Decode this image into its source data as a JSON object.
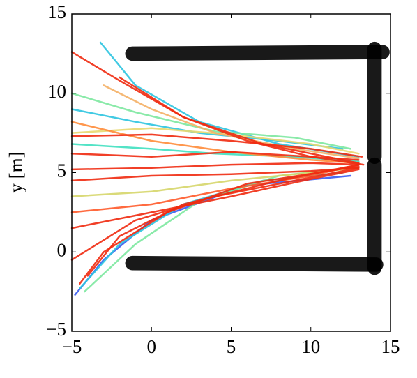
{
  "chart_data": {
    "type": "line",
    "ylabel": "y [m]",
    "xlim": [
      -5,
      15
    ],
    "ylim": [
      -5,
      15
    ],
    "xticks": [
      {
        "value": -5,
        "label": "−5"
      },
      0,
      5,
      10,
      15
    ],
    "yticks": [
      {
        "value": -5,
        "label": "−5"
      },
      0,
      5,
      10,
      15
    ],
    "walls": {
      "color": "#000000",
      "linewidth": 0.9,
      "segments": [
        {
          "x": [
            -1.2,
            14.5
          ],
          "y": [
            12.5,
            12.6
          ]
        },
        {
          "x": [
            -1.2,
            14.1
          ],
          "y": [
            -0.7,
            -0.8
          ]
        },
        {
          "x": [
            14.0,
            14.0
          ],
          "y": [
            12.8,
            6.0
          ]
        },
        {
          "x": [
            14.0,
            14.0
          ],
          "y": [
            5.5,
            -1.0
          ]
        }
      ]
    },
    "series": [
      {
        "color": "#2ec4e0",
        "x": [
          -3.2,
          -1,
          3,
          8,
          13
        ],
        "y": [
          13.2,
          10.5,
          8.2,
          6.8,
          6
        ]
      },
      {
        "color": "#2ec4e0",
        "x": [
          -5,
          -1,
          3,
          8,
          12
        ],
        "y": [
          9,
          8.2,
          7.5,
          7,
          6.5
        ]
      },
      {
        "color": "#7de8a0",
        "x": [
          -5,
          -1,
          4,
          9,
          12.5
        ],
        "y": [
          10,
          8.8,
          7.6,
          7.2,
          6.5
        ]
      },
      {
        "color": "#3a5cf0",
        "x": [
          -4.8,
          -3,
          0,
          6,
          12.5
        ],
        "y": [
          -2.7,
          -0.5,
          2,
          4.2,
          4.8
        ]
      },
      {
        "color": "#2ec4e0",
        "x": [
          -4.5,
          -2,
          2,
          7,
          12
        ],
        "y": [
          -2.3,
          0.5,
          3,
          4.5,
          5
        ]
      },
      {
        "color": "#7de8a0",
        "x": [
          -4.2,
          -1,
          3,
          8,
          12.5
        ],
        "y": [
          -2.5,
          0.5,
          3.2,
          4.8,
          5.3
        ]
      },
      {
        "color": "#40e0c0",
        "x": [
          -5,
          0,
          4,
          9,
          13
        ],
        "y": [
          6.8,
          6.5,
          6.2,
          6,
          5.7
        ]
      },
      {
        "color": "#e8d870",
        "x": [
          -5,
          0,
          5,
          10,
          13
        ],
        "y": [
          7.5,
          7.8,
          7.4,
          6.8,
          6.2
        ]
      },
      {
        "color": "#d6d66a",
        "x": [
          -5,
          0,
          5,
          10,
          13
        ],
        "y": [
          3.5,
          3.8,
          4.5,
          5,
          5.3
        ]
      },
      {
        "color": "#f4b066",
        "x": [
          -3,
          0,
          4,
          9,
          13
        ],
        "y": [
          10.5,
          9,
          7.5,
          6.5,
          5.9
        ]
      },
      {
        "color": "#ff8c3a",
        "x": [
          -5,
          0,
          5,
          10,
          13
        ],
        "y": [
          8.2,
          7,
          6.3,
          5.8,
          5.6
        ]
      },
      {
        "color": "#ff5a2a",
        "x": [
          -5,
          0,
          5,
          10,
          13
        ],
        "y": [
          2.5,
          3,
          4,
          4.8,
          5.5
        ]
      },
      {
        "color": "#f02a10",
        "x": [
          -5,
          -2,
          2,
          7,
          13
        ],
        "y": [
          12.6,
          10.8,
          8.5,
          6.8,
          5.6
        ]
      },
      {
        "color": "#f02a10",
        "x": [
          -5,
          0,
          5,
          10,
          13.2
        ],
        "y": [
          7.3,
          7.4,
          7,
          6.5,
          6
        ]
      },
      {
        "color": "#f02a10",
        "x": [
          -5,
          0,
          5,
          10,
          13
        ],
        "y": [
          5.2,
          5.3,
          5.5,
          5.6,
          5.5
        ]
      },
      {
        "color": "#f02a10",
        "x": [
          -5,
          -1,
          4,
          9,
          13
        ],
        "y": [
          -0.5,
          2,
          3.5,
          4.5,
          5.3
        ]
      },
      {
        "color": "#f02a10",
        "x": [
          -5,
          0,
          5,
          10,
          13
        ],
        "y": [
          1.5,
          2.5,
          3.5,
          4.6,
          5.2
        ]
      },
      {
        "color": "#f02a10",
        "x": [
          -4.5,
          -3,
          1,
          6,
          13
        ],
        "y": [
          -2,
          0,
          2.5,
          4.3,
          5.4
        ]
      },
      {
        "color": "#f02a10",
        "x": [
          -4,
          -2,
          2,
          8,
          13
        ],
        "y": [
          -1.5,
          1,
          3,
          4.5,
          5.5
        ]
      },
      {
        "color": "#f02a10",
        "x": [
          -5,
          0,
          5,
          10,
          13
        ],
        "y": [
          6.2,
          6,
          6.3,
          6,
          5.8
        ]
      },
      {
        "color": "#f02a10",
        "x": [
          -5,
          0,
          5,
          10,
          13
        ],
        "y": [
          4.5,
          4.8,
          4.9,
          5.1,
          5.3
        ]
      },
      {
        "color": "#f02a10",
        "x": [
          -2,
          2,
          6,
          10,
          13.3
        ],
        "y": [
          11,
          8.5,
          7,
          6,
          5.5
        ]
      }
    ]
  }
}
